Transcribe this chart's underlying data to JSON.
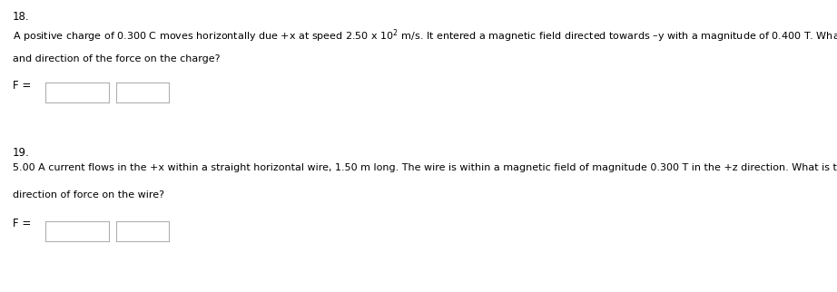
{
  "bg_color": "#ffffff",
  "text_color": "#000000",
  "box_edge_color": "#b0b0b0",
  "q18_number": "18.",
  "q18_line1": "A positive charge of 0.300 C moves horizontally due +x at speed 2.50 x 10$^{2}$ m/s. It entered a magnetic field directed towards –y with a magnitude of 0.400 T. What is the magnitude (include unit)",
  "q18_line2": "and direction of the force on the charge?",
  "q18_f_label": "F =",
  "q19_number": "19.",
  "q19_line1": "5.00 A current flows in the +x within a straight horizontal wire, 1.50 m long. The wire is within a magnetic field of magnitude 0.300 T in the +z direction. What is the magnitude (with unit) and",
  "q19_line2": "direction of force on the wire?",
  "q19_f_label": "F =",
  "font_size_number": 8.5,
  "font_size_text": 8.0,
  "font_size_label": 8.5
}
